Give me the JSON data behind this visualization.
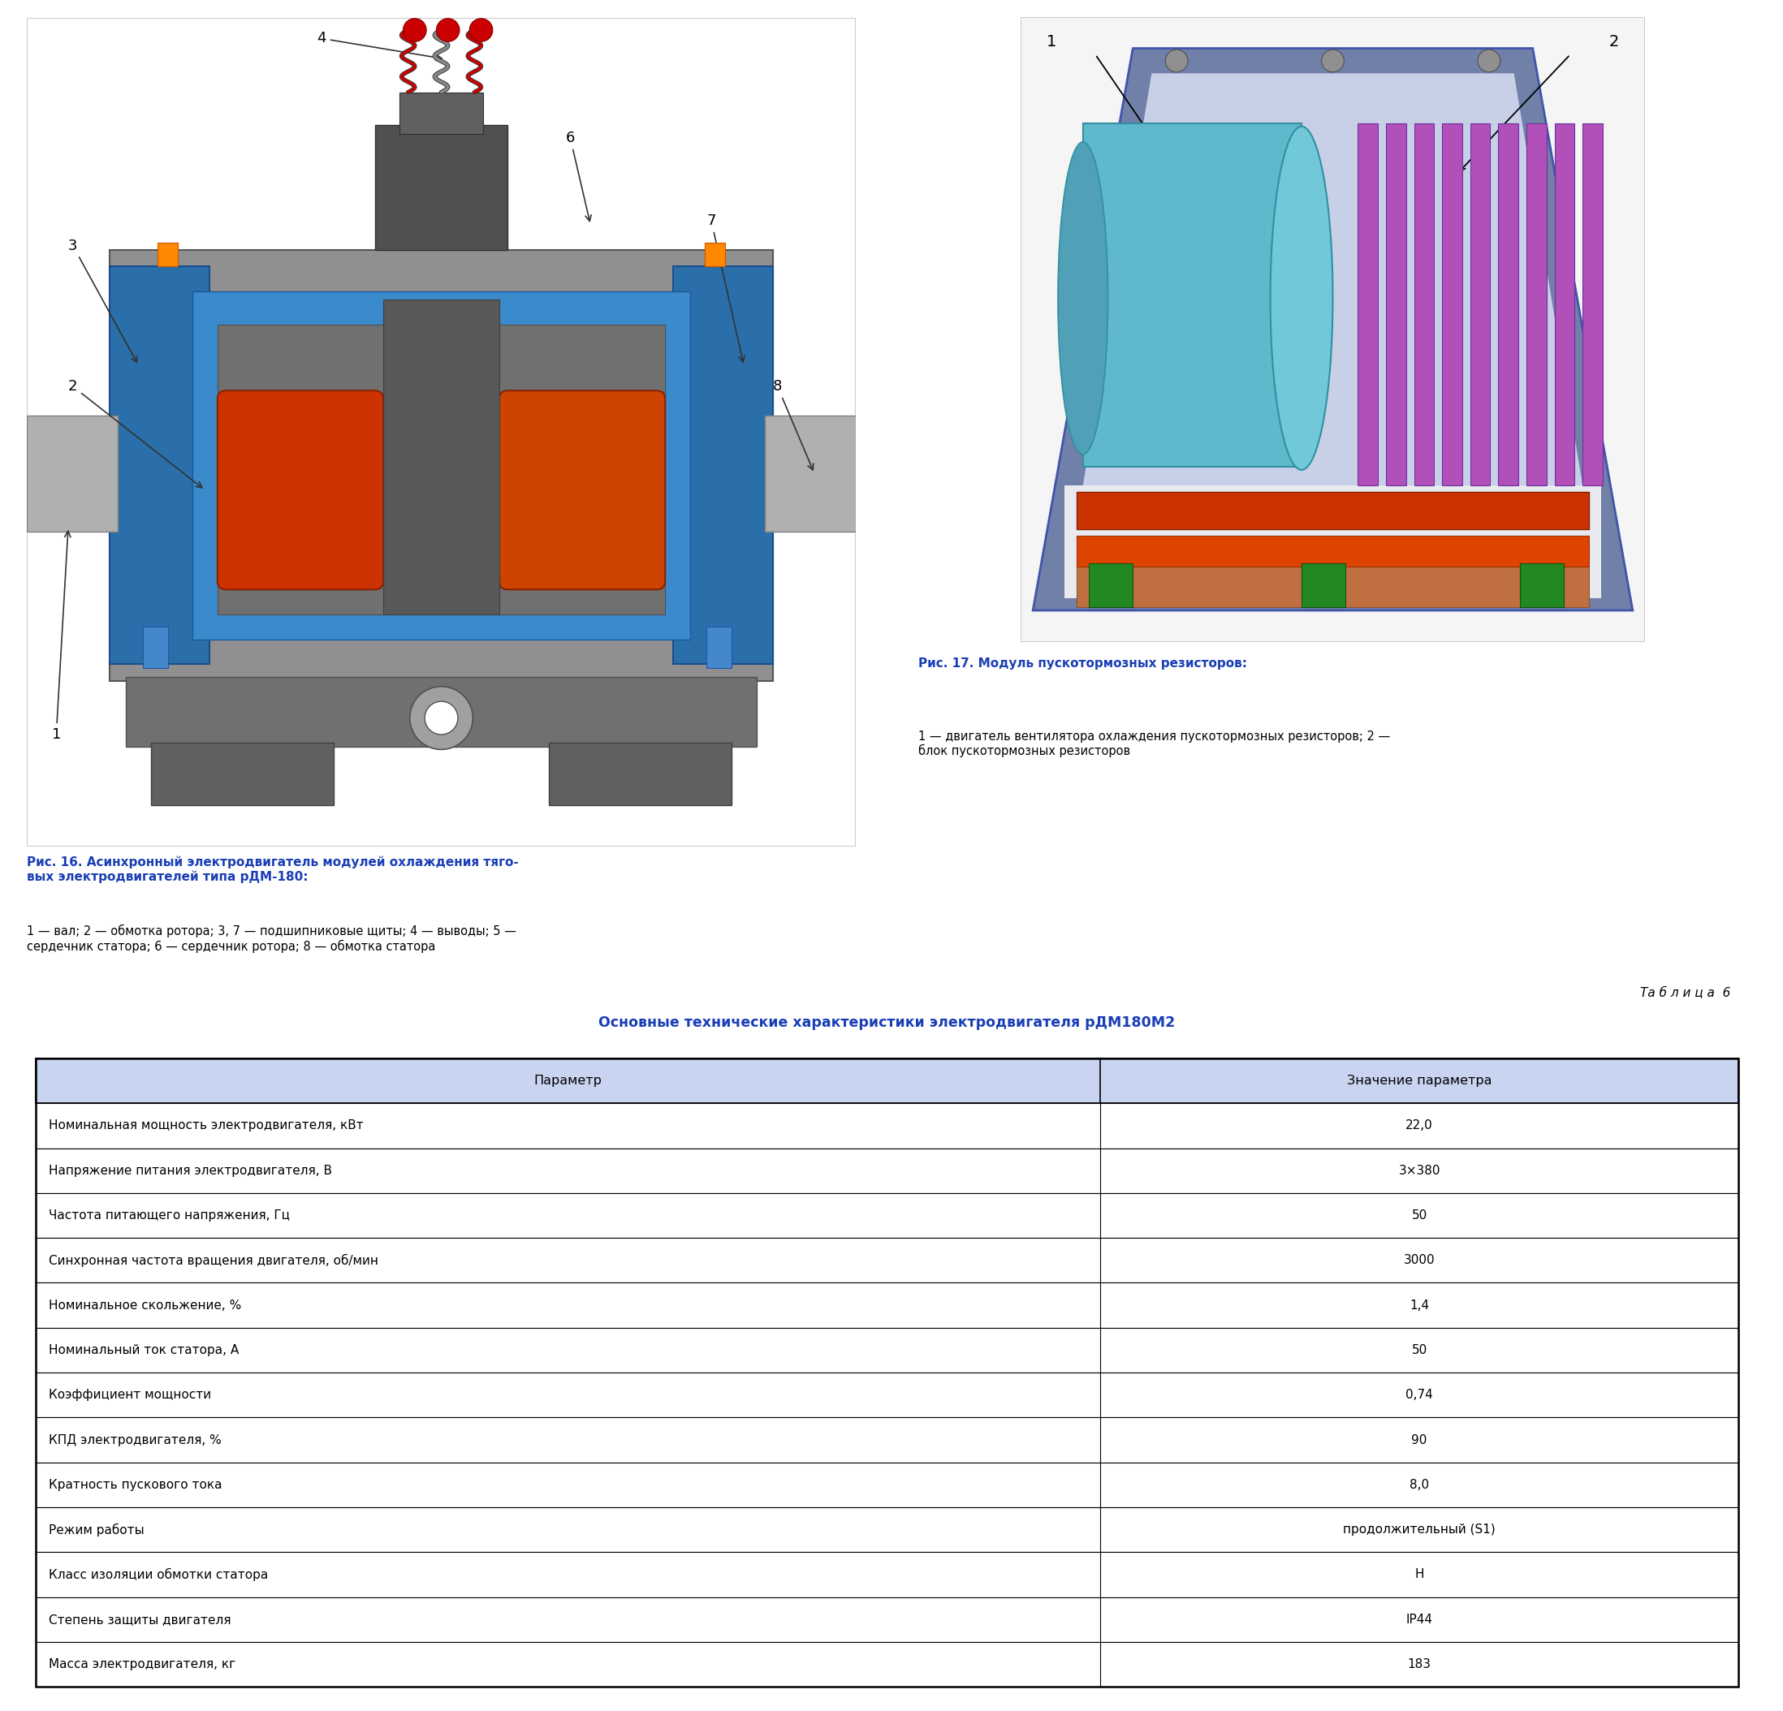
{
  "bg_color": "#ffffff",
  "table_title_line1": "Та б л и ц а  6",
  "table_title_line2": "Основные технические характеристики электродвигателя рДМ180М2",
  "table_header": [
    "Параметр",
    "Значение параметра"
  ],
  "table_rows": [
    [
      "Номинальная мощность электродвигателя, кВт",
      "22,0"
    ],
    [
      "Напряжение питания электродвигателя, В",
      "3×380"
    ],
    [
      "Частота питающего напряжения, Гц",
      "50"
    ],
    [
      "Синхронная частота вращения двигателя, об/мин",
      "3000"
    ],
    [
      "Номинальное скольжение, %",
      "1,4"
    ],
    [
      "Номинальный ток статора, А",
      "50"
    ],
    [
      "Коэффициент мощности",
      "0,74"
    ],
    [
      "КПД электродвигателя, %",
      "90"
    ],
    [
      "Кратность пускового тока",
      "8,0"
    ],
    [
      "Режим работы",
      "продолжительный (S1)"
    ],
    [
      "Класс изоляции обмотки статора",
      "Н"
    ],
    [
      "Степень защиты двигателя",
      "IP44"
    ],
    [
      "Масса электродвигателя, кг",
      "183"
    ]
  ],
  "header_bg": "#c8d4f0",
  "table_border": "#000000",
  "caption16_bold": "Рис. 16. Асинхронный электродвигатель модулей охлаждения тяго-\nвых электродвигателей типа рДМ-180:",
  "caption16_normal": "1 — вал; 2 — обмотка ротора; 3, 7 — подшипниковые щиты; 4 — выводы; 5 —\nсердечник статора; 6 — сердечник ротора; 8 — обмотка статора",
  "caption17_bold": "Рис. 17. Модуль пускотормозных резисторов:",
  "caption17_normal": "1 — двигатель вентилятора охлаждения пускотормозных резисторов; 2 —\nблок пускотормозных резисторов",
  "text_color_blue": "#1a3eb5",
  "text_color_black": "#000000"
}
